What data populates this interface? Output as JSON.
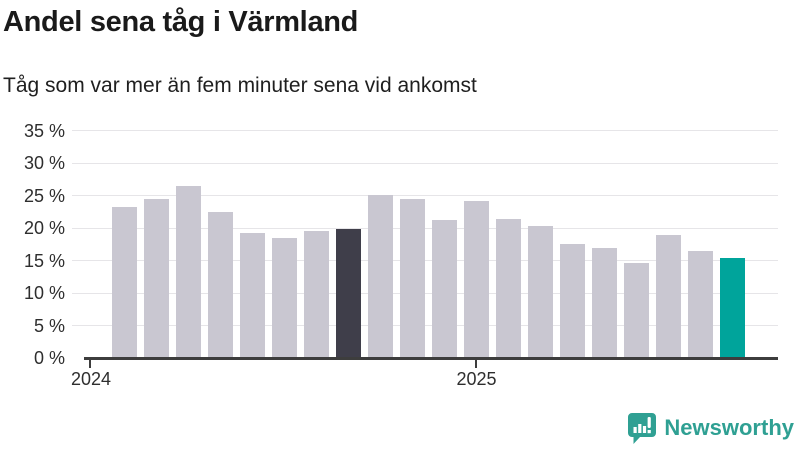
{
  "title": "Andel sena tåg i Värmland",
  "subtitle": "Tåg som var mer än fem minuter sena vid ankomst",
  "chart_data": {
    "type": "bar",
    "title": "Andel sena tåg i Värmland",
    "subtitle": "Tåg som var mer än fem minuter sena vid ankomst",
    "unit": "%",
    "x": [
      "2024-02",
      "2024-03",
      "2024-04",
      "2024-05",
      "2024-06",
      "2024-07",
      "2024-08",
      "2024-09",
      "2024-10",
      "2024-11",
      "2024-12",
      "2025-01",
      "2025-02",
      "2025-03",
      "2025-04",
      "2025-05",
      "2025-06",
      "2025-07",
      "2025-08",
      "2025-09"
    ],
    "values": [
      23.3,
      24.4,
      26.5,
      22.5,
      19.2,
      18.5,
      19.5,
      19.8,
      25.1,
      24.4,
      21.3,
      24.2,
      21.4,
      20.3,
      17.5,
      16.9,
      14.6,
      19.0,
      16.5,
      15.4
    ],
    "highlight_dark_index": 7,
    "highlight_teal_index": 19,
    "ylim": [
      0,
      35
    ],
    "ytick_step": 5,
    "ytick_labels": [
      "0 %",
      "5 %",
      "10 %",
      "15 %",
      "20 %",
      "25 %",
      "30 %",
      "35 %"
    ],
    "xtick_labels": [
      "2024",
      "2025"
    ],
    "grid": true,
    "legend": "none"
  },
  "colors": {
    "bar_default": "#c9c7d1",
    "bar_dark": "#3f3e4a",
    "bar_teal": "#00a49b",
    "grid": "#e6e5e8",
    "axis": "#3d3d3d",
    "title_text": "#1a1a1a",
    "tick_text": "#2e2e2e",
    "logo": "#2fa093"
  },
  "logo": {
    "text": "Newsworthy",
    "icon": "newsworthy-speech-bubble-chart-icon"
  }
}
